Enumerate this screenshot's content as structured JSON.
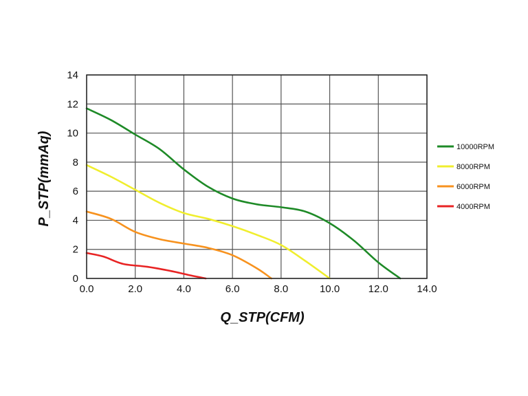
{
  "chart_data": {
    "type": "line",
    "title": "",
    "xlabel": "Q_STP(CFM)",
    "ylabel": "P_STP(mmAq)",
    "xlim": [
      0,
      14
    ],
    "ylim": [
      0,
      14
    ],
    "x_ticks": [
      "0.0",
      "2.0",
      "4.0",
      "6.0",
      "8.0",
      "10.0",
      "12.0",
      "14.0"
    ],
    "y_ticks": [
      "0",
      "2",
      "4",
      "6",
      "8",
      "10",
      "12",
      "14"
    ],
    "grid": true,
    "legend_position": "right",
    "series": [
      {
        "name": "10000RPM",
        "color": "#1e8a27",
        "points": [
          [
            0,
            11.7
          ],
          [
            1,
            10.9
          ],
          [
            2,
            9.9
          ],
          [
            3,
            8.9
          ],
          [
            4,
            7.5
          ],
          [
            5,
            6.3
          ],
          [
            6,
            5.5
          ],
          [
            7,
            5.1
          ],
          [
            8,
            4.9
          ],
          [
            9,
            4.6
          ],
          [
            10,
            3.8
          ],
          [
            11,
            2.6
          ],
          [
            12,
            1.1
          ],
          [
            12.9,
            0
          ]
        ]
      },
      {
        "name": "8000RPM",
        "color": "#f0ee2e",
        "points": [
          [
            0,
            7.8
          ],
          [
            1,
            7.0
          ],
          [
            2,
            6.1
          ],
          [
            3,
            5.2
          ],
          [
            4,
            4.5
          ],
          [
            5,
            4.1
          ],
          [
            6,
            3.6
          ],
          [
            7,
            3.0
          ],
          [
            8,
            2.3
          ],
          [
            9,
            1.2
          ],
          [
            10,
            0
          ]
        ]
      },
      {
        "name": "6000RPM",
        "color": "#f7921e",
        "points": [
          [
            0,
            4.6
          ],
          [
            1,
            4.1
          ],
          [
            2,
            3.2
          ],
          [
            3,
            2.7
          ],
          [
            4,
            2.4
          ],
          [
            5,
            2.1
          ],
          [
            6,
            1.6
          ],
          [
            7,
            0.7
          ],
          [
            7.6,
            0
          ]
        ]
      },
      {
        "name": "4000RPM",
        "color": "#e82323",
        "points": [
          [
            0,
            1.75
          ],
          [
            0.7,
            1.5
          ],
          [
            1.5,
            1.0
          ],
          [
            2.5,
            0.8
          ],
          [
            3.5,
            0.5
          ],
          [
            4.3,
            0.2
          ],
          [
            4.9,
            0
          ]
        ]
      }
    ]
  }
}
